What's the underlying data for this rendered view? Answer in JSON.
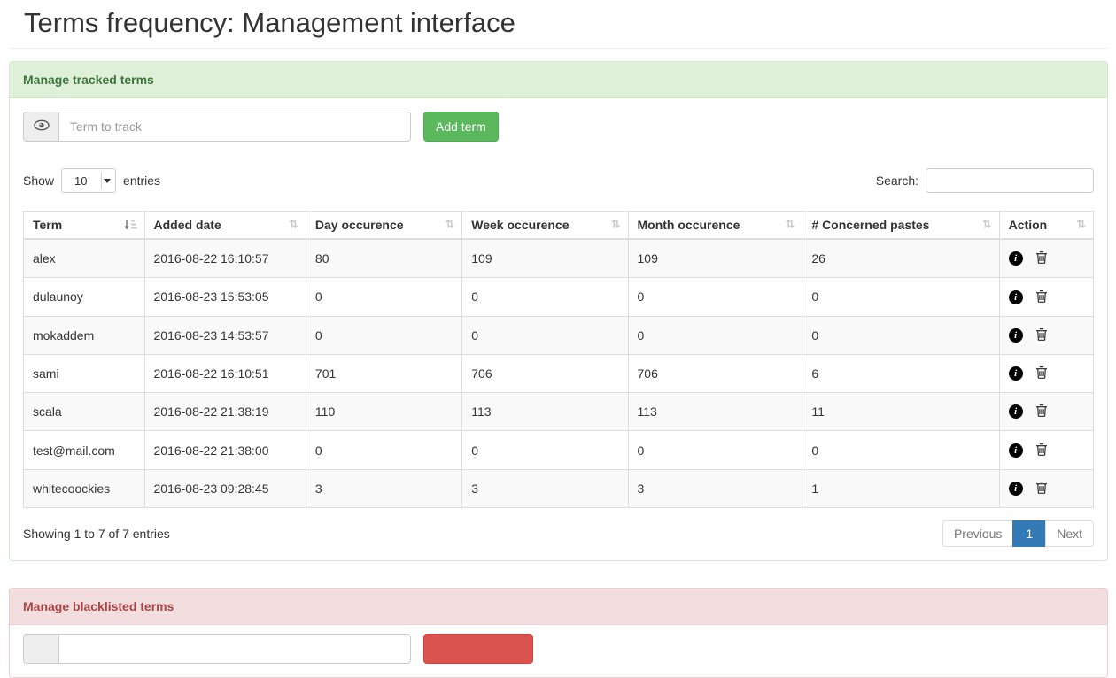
{
  "page": {
    "title": "Terms frequency: Management interface"
  },
  "colors": {
    "success_heading_bg": "#dff0d8",
    "success_border": "#d6e9c6",
    "success_text": "#3c763d",
    "danger_heading_bg": "#f2dede",
    "danger_border": "#ebccd1",
    "danger_text": "#a94442",
    "add_button": "#5cb85c",
    "blacklist_button": "#d9534f",
    "pagination_active": "#337ab7",
    "row_stripe": "#f9f9f9",
    "table_border": "#dddddd"
  },
  "icons": {
    "sort_both": "⇅",
    "eye": "eye",
    "info": "circled-i",
    "delete": "trash-can"
  },
  "tracked_panel": {
    "title": "Manage tracked terms",
    "term_input": {
      "placeholder": "Term to track",
      "value": ""
    },
    "add_button_label": "Add term",
    "table": {
      "show_label": "Show",
      "entries_label": "entries",
      "page_length": "10",
      "search_label": "Search:",
      "search_value": "",
      "columns": [
        {
          "label": "Term",
          "sort": "asc"
        },
        {
          "label": "Added date",
          "sort": "none"
        },
        {
          "label": "Day occurence",
          "sort": "none"
        },
        {
          "label": "Week occurence",
          "sort": "none"
        },
        {
          "label": "Month occurence",
          "sort": "none"
        },
        {
          "label": "# Concerned pastes",
          "sort": "none"
        },
        {
          "label": "Action",
          "sort": "none"
        }
      ],
      "rows": [
        {
          "term": "alex",
          "added_date": "2016-08-22 16:10:57",
          "day": "80",
          "week": "109",
          "month": "109",
          "pastes": "26"
        },
        {
          "term": "dulaunoy",
          "added_date": "2016-08-23 15:53:05",
          "day": "0",
          "week": "0",
          "month": "0",
          "pastes": "0"
        },
        {
          "term": "mokaddem",
          "added_date": "2016-08-23 14:53:57",
          "day": "0",
          "week": "0",
          "month": "0",
          "pastes": "0"
        },
        {
          "term": "sami",
          "added_date": "2016-08-22 16:10:51",
          "day": "701",
          "week": "706",
          "month": "706",
          "pastes": "6"
        },
        {
          "term": "scala",
          "added_date": "2016-08-22 21:38:19",
          "day": "110",
          "week": "113",
          "month": "113",
          "pastes": "11"
        },
        {
          "term": "test@mail.com",
          "added_date": "2016-08-22 21:38:00",
          "day": "0",
          "week": "0",
          "month": "0",
          "pastes": "0"
        },
        {
          "term": "whitecoockies",
          "added_date": "2016-08-23 09:28:45",
          "day": "3",
          "week": "3",
          "month": "3",
          "pastes": "1"
        }
      ],
      "info_text": "Showing 1 to 7 of 7 entries",
      "pagination": {
        "previous_label": "Previous",
        "pages": [
          "1"
        ],
        "active_page": "1",
        "next_label": "Next"
      }
    }
  },
  "blacklist_panel": {
    "title": "Manage blacklisted terms",
    "term_input": {
      "placeholder": "",
      "value": ""
    },
    "button_label": ""
  }
}
